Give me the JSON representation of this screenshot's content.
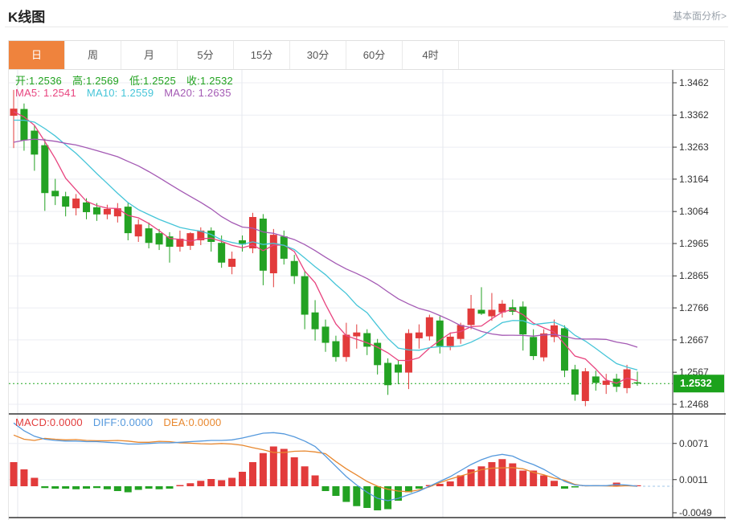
{
  "header": {
    "title": "K线图",
    "link": "基本面分析>"
  },
  "tabs": {
    "items": [
      "日",
      "周",
      "月",
      "5分",
      "15分",
      "30分",
      "60分",
      "4时"
    ],
    "active_index": 0
  },
  "ohlc_row": {
    "color": "#21a21f",
    "items": [
      "开:1.2536",
      "高:1.2569",
      "低:1.2525",
      "收:1.2532"
    ]
  },
  "ma_row": {
    "items": [
      {
        "text": "MA5: 1.2541",
        "color": "#e8447f"
      },
      {
        "text": "MA10: 1.2559",
        "color": "#45c5d8"
      },
      {
        "text": "MA20: 1.2635",
        "color": "#a45ab4"
      }
    ]
  },
  "macd_row": {
    "items": [
      {
        "text": "MACD:0.0000",
        "color": "#e23b3b"
      },
      {
        "text": "DIFF:0.0000",
        "color": "#5599dd"
      },
      {
        "text": "DEA:0.0000",
        "color": "#e8882f"
      }
    ]
  },
  "colors": {
    "up": "#e23b3b",
    "down": "#23a223",
    "badge": "#1ca21c",
    "price_line": "#22a822",
    "ma5": "#e8447f",
    "ma10": "#45c5d8",
    "ma20": "#a45ab4",
    "diff": "#5599dd",
    "dea": "#e8882f",
    "tab_active_bg": "#ef833d",
    "grid": "#eceef3",
    "grid_vertical": "#e4e7ee",
    "axis": "#333333",
    "macd_tail_dash": "#9fc6ea"
  },
  "chart_data": {
    "type": "candlestick",
    "title": "K线图",
    "period": "日",
    "legend": [
      "MA5",
      "MA10",
      "MA20",
      "MACD",
      "DIFF",
      "DEA"
    ],
    "ylim": [
      1.2468,
      1.3462
    ],
    "price_axis_ticks": [
      1.3462,
      1.3362,
      1.3263,
      1.3164,
      1.3064,
      1.2965,
      1.2865,
      1.2766,
      1.2667,
      1.2567,
      1.2468
    ],
    "last_price": 1.2532,
    "last_ohlc": {
      "open": 1.2536,
      "high": 1.2569,
      "low": 1.2525,
      "close": 1.2532
    },
    "ma_values": {
      "ma5": 1.2541,
      "ma10": 1.2559,
      "ma20": 1.2635
    },
    "ma_seed": [
      1.315,
      1.316,
      1.317,
      1.318,
      1.319,
      1.32,
      1.321,
      1.3225,
      1.324,
      1.3255,
      1.327,
      1.3285,
      1.33,
      1.332,
      1.334,
      1.3355,
      1.3365,
      1.337,
      1.3372,
      1.3375
    ],
    "candles": [
      [
        1.336,
        1.344,
        1.326,
        1.3382
      ],
      [
        1.3381,
        1.3398,
        1.3252,
        1.3284
      ],
      [
        1.3314,
        1.333,
        1.319,
        1.324
      ],
      [
        1.3269,
        1.3289,
        1.3066,
        1.3121
      ],
      [
        1.3128,
        1.3165,
        1.3084,
        1.3111
      ],
      [
        1.3111,
        1.3125,
        1.3049,
        1.3079
      ],
      [
        1.3074,
        1.3118,
        1.3052,
        1.3104
      ],
      [
        1.3092,
        1.3105,
        1.304,
        1.3062
      ],
      [
        1.3077,
        1.309,
        1.3035,
        1.3055
      ],
      [
        1.3055,
        1.3085,
        1.304,
        1.3072
      ],
      [
        1.3049,
        1.309,
        1.303,
        1.3074
      ],
      [
        1.3079,
        1.3092,
        1.2975,
        1.2997
      ],
      [
        1.2987,
        1.304,
        1.297,
        1.3024
      ],
      [
        1.3012,
        1.303,
        1.295,
        1.2967
      ],
      [
        1.2997,
        1.301,
        1.2945,
        1.2962
      ],
      [
        1.2987,
        1.3,
        1.2906,
        1.2955
      ],
      [
        1.2955,
        1.3005,
        1.294,
        1.298
      ],
      [
        1.2958,
        1.3,
        1.2945,
        1.2997
      ],
      [
        1.2975,
        1.3015,
        1.296,
        1.3005
      ],
      [
        1.3005,
        1.3015,
        1.294,
        1.297
      ],
      [
        1.2967,
        1.299,
        1.289,
        1.2906
      ],
      [
        1.2893,
        1.294,
        1.287,
        1.2918
      ],
      [
        1.2975,
        1.299,
        1.294,
        1.2962
      ],
      [
        1.295,
        1.306,
        1.2935,
        1.3047
      ],
      [
        1.3042,
        1.3056,
        1.2836,
        1.2881
      ],
      [
        1.2873,
        1.301,
        1.283,
        1.2992
      ],
      [
        1.2987,
        1.3005,
        1.29,
        1.2918
      ],
      [
        1.2911,
        1.293,
        1.284,
        1.2864
      ],
      [
        1.2864,
        1.288,
        1.27,
        1.2745
      ],
      [
        1.2752,
        1.279,
        1.2665,
        1.27
      ],
      [
        1.2708,
        1.273,
        1.263,
        1.2658
      ],
      [
        1.2663,
        1.268,
        1.26,
        1.2614
      ],
      [
        1.2614,
        1.272,
        1.26,
        1.2683
      ],
      [
        1.2678,
        1.2715,
        1.264,
        1.269
      ],
      [
        1.2688,
        1.27,
        1.262,
        1.2646
      ],
      [
        1.2658,
        1.267,
        1.256,
        1.2589
      ],
      [
        1.2596,
        1.261,
        1.2497,
        1.2527
      ],
      [
        1.2591,
        1.2605,
        1.253,
        1.2566
      ],
      [
        1.2566,
        1.27,
        1.2515,
        1.2688
      ],
      [
        1.2672,
        1.2715,
        1.264,
        1.269
      ],
      [
        1.2678,
        1.2745,
        1.2665,
        1.2737
      ],
      [
        1.2727,
        1.274,
        1.2625,
        1.2648
      ],
      [
        1.2648,
        1.269,
        1.2635,
        1.2677
      ],
      [
        1.267,
        1.272,
        1.2655,
        1.2713
      ],
      [
        1.2713,
        1.2806,
        1.27,
        1.2764
      ],
      [
        1.276,
        1.283,
        1.2744,
        1.2748
      ],
      [
        1.274,
        1.2812,
        1.2726,
        1.276
      ],
      [
        1.2752,
        1.279,
        1.2736,
        1.2779
      ],
      [
        1.2768,
        1.2792,
        1.2744,
        1.2754
      ],
      [
        1.277,
        1.2786,
        1.2634,
        1.2684
      ],
      [
        1.2676,
        1.27,
        1.2605,
        1.2617
      ],
      [
        1.2613,
        1.27,
        1.2601,
        1.2687
      ],
      [
        1.2676,
        1.273,
        1.266,
        1.2712
      ],
      [
        1.2703,
        1.2712,
        1.2552,
        1.2572
      ],
      [
        1.2576,
        1.259,
        1.2479,
        1.2498
      ],
      [
        1.2478,
        1.258,
        1.2462,
        1.257
      ],
      [
        1.2554,
        1.2572,
        1.251,
        1.2534
      ],
      [
        1.2528,
        1.2562,
        1.25,
        1.2541
      ],
      [
        1.2547,
        1.2562,
        1.2506,
        1.2522
      ],
      [
        1.2518,
        1.259,
        1.2502,
        1.2576
      ],
      [
        1.2536,
        1.2569,
        1.2525,
        1.2532
      ]
    ],
    "macd": {
      "axis_ticks": [
        0.0071,
        0.0011,
        -0.0049
      ],
      "hist": [
        0.004,
        0.0028,
        0.0014,
        -0.0003,
        -0.0004,
        -0.0004,
        -0.0005,
        -0.0004,
        -0.0003,
        -0.0005,
        -0.0008,
        -0.001,
        -0.0006,
        -0.0004,
        -0.0005,
        -0.0004,
        0.0002,
        0.0005,
        0.0009,
        0.0012,
        0.001,
        0.0014,
        0.0024,
        0.004,
        0.0055,
        0.0066,
        0.0062,
        0.0048,
        0.0033,
        0.0018,
        -0.0008,
        -0.0016,
        -0.0026,
        -0.0033,
        -0.0036,
        -0.004,
        -0.0038,
        -0.0024,
        -0.001,
        -0.0004,
        0.0002,
        0.0004,
        0.0008,
        0.0018,
        0.0028,
        0.0033,
        0.004,
        0.0045,
        0.0038,
        0.0026,
        0.0026,
        0.0018,
        0.0009,
        -0.0004,
        -0.0002,
        0.0001,
        0.0,
        0.0001,
        0.0006,
        0.0002,
        0.0
      ],
      "diff": [
        0.0105,
        0.0092,
        0.0083,
        0.0078,
        0.0076,
        0.0075,
        0.0075,
        0.0074,
        0.0074,
        0.0073,
        0.0072,
        0.007,
        0.007,
        0.0071,
        0.0072,
        0.0072,
        0.0073,
        0.0074,
        0.0075,
        0.0076,
        0.0076,
        0.0077,
        0.008,
        0.0084,
        0.0088,
        0.0089,
        0.0087,
        0.0082,
        0.0075,
        0.0066,
        0.005,
        0.0033,
        0.0016,
        0.0002,
        -0.001,
        -0.002,
        -0.0024,
        -0.002,
        -0.0014,
        -0.0008,
        0.0,
        0.0008,
        0.0016,
        0.0026,
        0.0036,
        0.0044,
        0.005,
        0.0053,
        0.005,
        0.0042,
        0.0036,
        0.0028,
        0.0018,
        0.0008,
        0.0002,
        0.0001,
        0.0001,
        0.0001,
        0.0003,
        0.0002,
        0.0
      ]
    }
  }
}
